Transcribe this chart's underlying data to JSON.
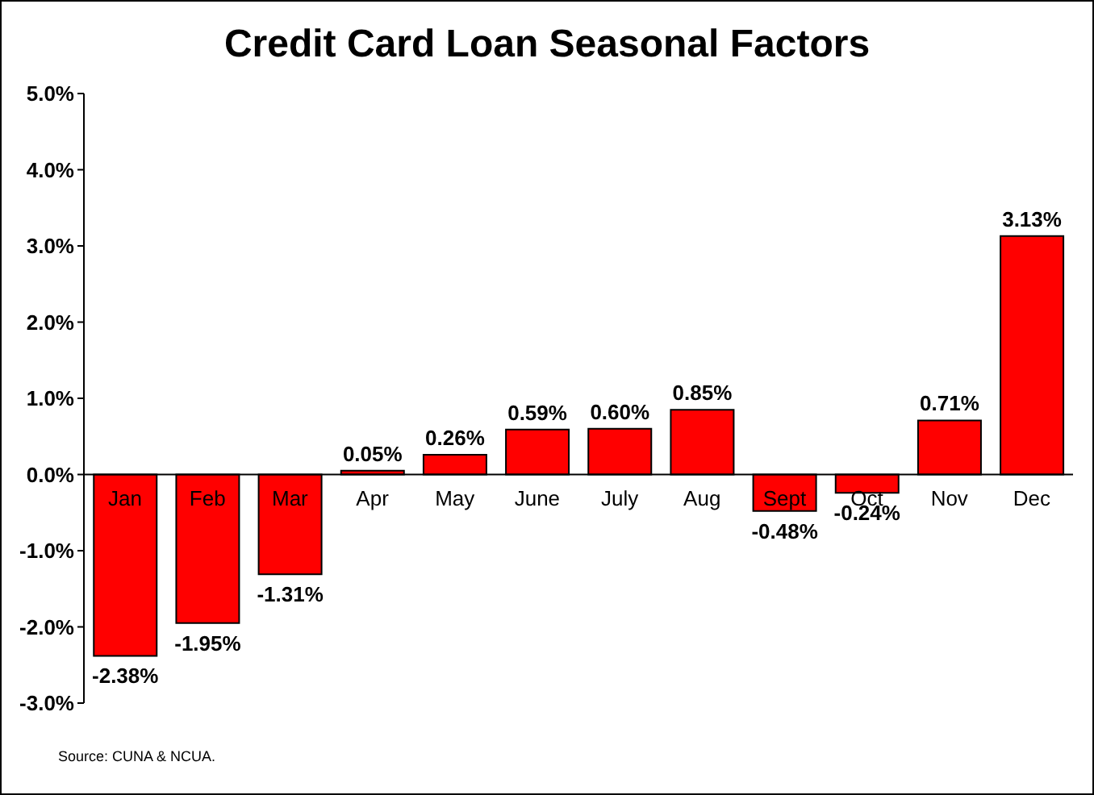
{
  "chart_data": {
    "type": "bar",
    "title": "Credit Card Loan Seasonal Factors",
    "categories": [
      "Jan",
      "Feb",
      "Mar",
      "Apr",
      "May",
      "June",
      "July",
      "Aug",
      "Sept",
      "Oct",
      "Nov",
      "Dec"
    ],
    "values": [
      -2.38,
      -1.95,
      -1.31,
      0.05,
      0.26,
      0.59,
      0.6,
      0.85,
      -0.48,
      -0.24,
      0.71,
      3.13
    ],
    "value_labels": [
      "-2.38%",
      "-1.95%",
      "-1.31%",
      "0.05%",
      "0.26%",
      "0.59%",
      "0.60%",
      "0.85%",
      "-0.48%",
      "-0.24%",
      "0.71%",
      "3.13%"
    ],
    "color": "#ff0000",
    "ylim": [
      -3,
      5
    ],
    "yticks": [
      {
        "value": -3,
        "label": "-3.0%"
      },
      {
        "value": -2,
        "label": "-2.0%"
      },
      {
        "value": -1,
        "label": "-1.0%"
      },
      {
        "value": 0,
        "label": "0.0%"
      },
      {
        "value": 1,
        "label": "1.0%"
      },
      {
        "value": 2,
        "label": "2.0%"
      },
      {
        "value": 3,
        "label": "3.0%"
      },
      {
        "value": 4,
        "label": "4.0%"
      },
      {
        "value": 5,
        "label": "5.0%"
      }
    ],
    "grid": false,
    "annotations": [
      "Source: CUNA & NCUA."
    ]
  }
}
